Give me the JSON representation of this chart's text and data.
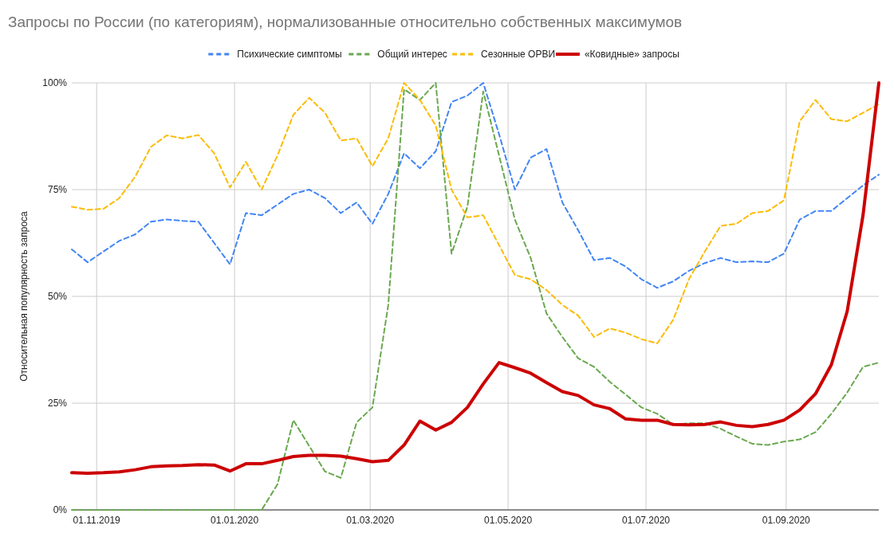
{
  "chart_data": {
    "type": "line",
    "title": "Запросы по России (по категориям), нормализованные относительно собственных максимумов",
    "ylabel": "Относительная популярность запроса",
    "x": [
      "2019-10-21",
      "2019-10-28",
      "2019-11-04",
      "2019-11-11",
      "2019-11-18",
      "2019-11-25",
      "2019-12-02",
      "2019-12-09",
      "2019-12-16",
      "2019-12-23",
      "2019-12-30",
      "2020-01-06",
      "2020-01-13",
      "2020-01-20",
      "2020-01-27",
      "2020-02-03",
      "2020-02-10",
      "2020-02-17",
      "2020-02-24",
      "2020-03-02",
      "2020-03-09",
      "2020-03-16",
      "2020-03-23",
      "2020-03-30",
      "2020-04-06",
      "2020-04-13",
      "2020-04-20",
      "2020-04-27",
      "2020-05-04",
      "2020-05-11",
      "2020-05-18",
      "2020-05-25",
      "2020-06-01",
      "2020-06-08",
      "2020-06-15",
      "2020-06-22",
      "2020-06-29",
      "2020-07-06",
      "2020-07-13",
      "2020-07-20",
      "2020-07-27",
      "2020-08-03",
      "2020-08-10",
      "2020-08-17",
      "2020-08-24",
      "2020-08-31",
      "2020-09-07",
      "2020-09-14",
      "2020-09-21",
      "2020-09-28",
      "2020-10-05",
      "2020-10-12"
    ],
    "series": [
      {
        "name": "Психические симптомы",
        "color": "#4285f4",
        "line_style": "dashed",
        "values": [
          61,
          58,
          60.5,
          63,
          64.5,
          67.5,
          68,
          67.7,
          67.5,
          62.5,
          57.5,
          69.5,
          69,
          71.5,
          74,
          75,
          73,
          69.5,
          72,
          67,
          74,
          83.5,
          80,
          84,
          95.5,
          97,
          100,
          88,
          75,
          82.5,
          84.5,
          72,
          65.5,
          58.5,
          59,
          57,
          54,
          52,
          53.5,
          56,
          57.8,
          59,
          58,
          58.2,
          58,
          60,
          68,
          70,
          70,
          73,
          76,
          78.5
        ]
      },
      {
        "name": "Общий интерес",
        "color": "#6aa84f",
        "line_style": "dashed",
        "values": [
          0,
          0,
          0,
          0,
          0,
          0,
          0,
          0,
          0,
          0,
          0,
          0,
          0,
          6,
          21,
          15,
          9,
          7.5,
          20.5,
          24,
          48,
          98.5,
          96,
          100,
          60,
          71,
          98,
          83,
          68,
          59,
          46,
          40.5,
          35.5,
          33.5,
          30,
          27,
          24,
          22.5,
          20,
          20.3,
          20.3,
          19,
          17.2,
          15.5,
          15.2,
          16,
          16.5,
          18.2,
          22.5,
          27.5,
          33.5,
          34.5
        ]
      },
      {
        "name": "Сезонные ОРВИ",
        "color": "#fbbc04",
        "line_style": "dashed",
        "values": [
          71,
          70.3,
          70.5,
          73,
          78,
          85,
          87.7,
          87,
          87.8,
          83.5,
          75.5,
          81.5,
          75,
          83,
          92.5,
          96.5,
          93,
          86.5,
          87,
          80.5,
          87,
          100,
          96,
          90,
          75,
          68.5,
          69,
          62,
          55,
          54,
          51.5,
          48,
          45.5,
          40.5,
          42.5,
          41.5,
          40,
          39,
          44.5,
          54,
          60.5,
          66.5,
          67,
          69.5,
          70,
          72.5,
          91,
          96,
          91.5,
          91,
          93,
          95
        ]
      },
      {
        "name": "«Ковидные» запросы",
        "color": "#cc0000",
        "line_style": "solid",
        "values": [
          8.7,
          8.6,
          8.7,
          8.9,
          9.4,
          10.1,
          10.3,
          10.4,
          10.6,
          10.5,
          9.1,
          10.8,
          10.8,
          11.6,
          12.5,
          12.8,
          12.8,
          12.6,
          12,
          11.3,
          11.6,
          15.2,
          20.8,
          18.7,
          20.5,
          24,
          29.5,
          34.5,
          33.3,
          32,
          29.8,
          27.7,
          26.8,
          24.6,
          23.7,
          21.3,
          21,
          21,
          20,
          19.9,
          20,
          20.6,
          19.8,
          19.5,
          20,
          21,
          23.4,
          27.2,
          34,
          46.5,
          69,
          100
        ]
      }
    ],
    "xlim": [
      "2019-10-21",
      "2020-10-12"
    ],
    "xticks": [
      {
        "value": "2019-11-01",
        "label": "01.11.2019"
      },
      {
        "value": "2020-01-01",
        "label": "01.01.2020"
      },
      {
        "value": "2020-03-01",
        "label": "01.03.2020"
      },
      {
        "value": "2020-05-01",
        "label": "01.05.2020"
      },
      {
        "value": "2020-07-01",
        "label": "01.07.2020"
      },
      {
        "value": "2020-09-01",
        "label": "01.09.2020"
      }
    ],
    "ylim": [
      0,
      100
    ],
    "yticks": [
      {
        "value": 0,
        "label": "0%"
      },
      {
        "value": 25,
        "label": "25%"
      },
      {
        "value": 50,
        "label": "50%"
      },
      {
        "value": 75,
        "label": "75%"
      },
      {
        "value": 100,
        "label": "100%"
      }
    ],
    "grid": true,
    "legend": "top"
  }
}
